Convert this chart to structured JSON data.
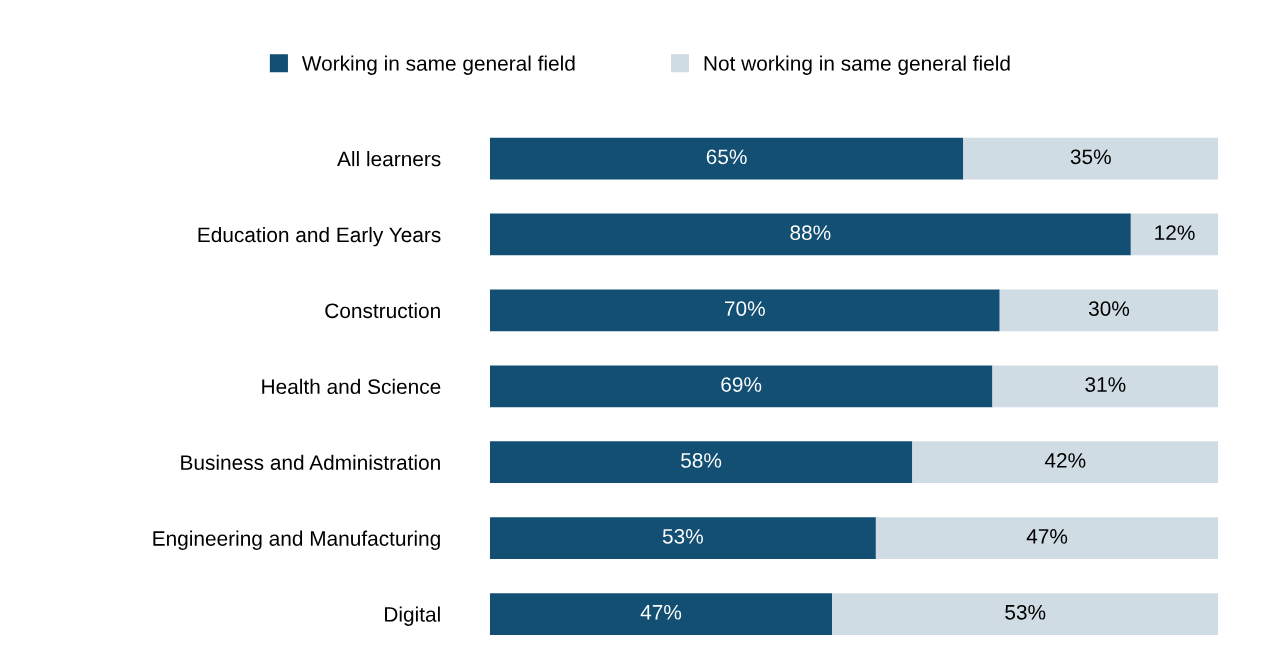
{
  "chart_data": {
    "type": "bar",
    "orientation": "horizontal",
    "stacked": true,
    "legend": "top",
    "categories": [
      "All learners",
      "Education and Early Years",
      "Construction",
      "Health and Science",
      "Business and Administration",
      "Engineering and Manufacturing",
      "Digital"
    ],
    "series": [
      {
        "name": "Working in same general field",
        "color": "#124f73",
        "values": [
          65,
          88,
          70,
          69,
          58,
          53,
          47
        ],
        "value_labels": [
          "65%",
          "88%",
          "70%",
          "69%",
          "58%",
          "53%",
          "47%"
        ]
      },
      {
        "name": "Not working in same general field",
        "color": "#d0dce4",
        "values": [
          35,
          12,
          30,
          31,
          42,
          47,
          53
        ],
        "value_labels": [
          "35%",
          "12%",
          "30%",
          "31%",
          "42%",
          "47%",
          "53%"
        ]
      }
    ]
  }
}
